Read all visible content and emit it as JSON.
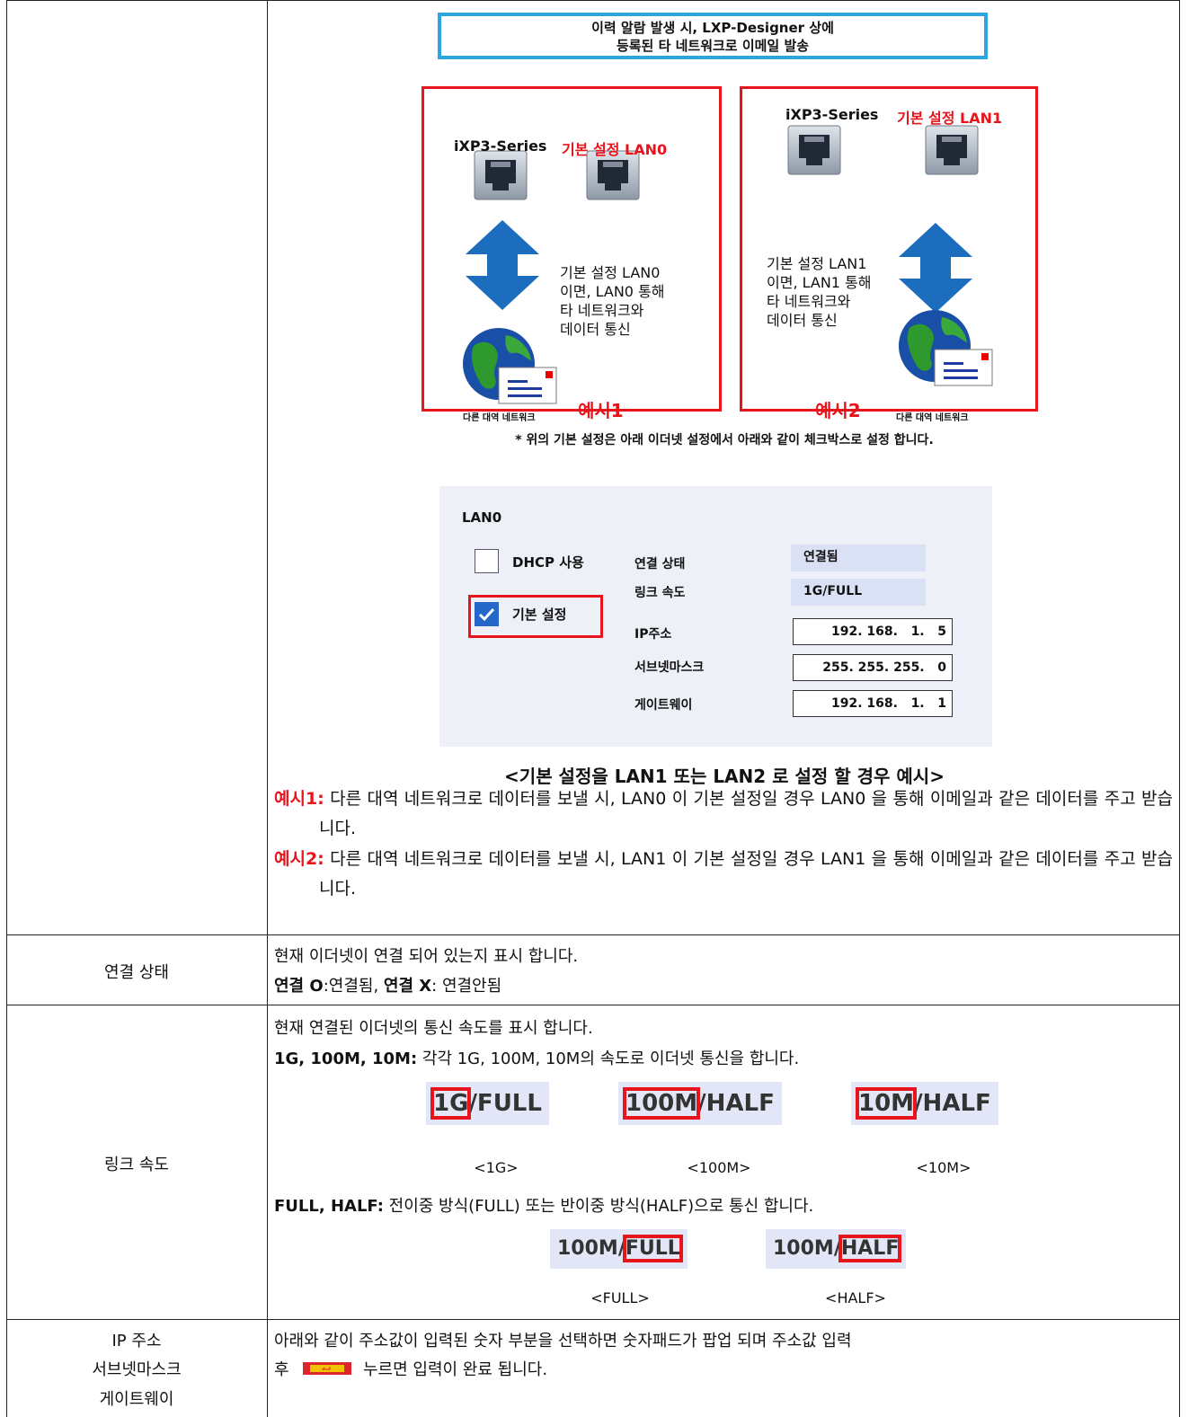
{
  "banner": {
    "lines": [
      "이력 알람 발생 시, LXP-Designer 상에",
      "등록된 타 네트워크로 이메일 발송"
    ]
  },
  "examples": [
    {
      "device": "iXP3-Series",
      "setting": "기본 설정 LAN0",
      "description": [
        "기본 설정 LAN0",
        "이면, LAN0 통해",
        "타 네트워크와",
        "데이터 통신"
      ],
      "network": "다른 대역 네트워크",
      "label": "예시1"
    },
    {
      "device": "iXP3-Series",
      "setting": "기본 설정 LAN1",
      "description": [
        "기본 설정 LAN1",
        "이면, LAN1 통해",
        "타 네트워크와",
        "데이터 통신"
      ],
      "network": "다른 대역 네트워크",
      "label": "예시2"
    }
  ],
  "note": "* 위의 기본 설정은 아래 이더넷 설정에서 아래와 같이 체크박스로 설정 합니다.",
  "lan_panel": {
    "title": "LAN0",
    "dhcp": "DHCP 사용",
    "default": "기본 설정",
    "fields": [
      {
        "label": "연결 상태",
        "value": "연결됨"
      },
      {
        "label": "링크 속도",
        "value": "1G/FULL"
      },
      {
        "label": "IP주소",
        "value": "192. 168.   1.   5"
      },
      {
        "label": "서브넷마스크",
        "value": "255. 255. 255.   0"
      },
      {
        "label": "게이트웨이",
        "value": "192. 168.   1.   1"
      }
    ]
  },
  "caption": "<기본 설정을 LAN1 또는 LAN2 로 설정 할 경우 예시>",
  "explanations": [
    {
      "label": "예시1:",
      "text": " 다른 대역 네트워크로 데이터를 보낼 시, LAN0 이 기본 설정일 경우 LAN0 을 통해 이메일과 같은 데이터를 주고 받습니다."
    },
    {
      "label": "예시2:",
      "text": " 다른 대역 네트워크로 데이터를 보낼 시, LAN1 이 기본 설정일 경우 LAN1 을 통해 이메일과 같은 데이터를 주고 받습니다."
    }
  ],
  "connection": {
    "header": "연결 상태",
    "description": "현재 이더넷이 연결 되어 있는지 표시 합니다.",
    "legend": [
      {
        "key": "연결 O",
        "text": ":연결됨, "
      },
      {
        "key": "연결 X",
        "text": ": 연결안됨"
      }
    ]
  },
  "link_speed": {
    "header": "링크 속도",
    "description": "현재 연결된 이더넷의 통신 속도를 표시 합니다.",
    "speeds": {
      "key": "1G, 100M, 10M:",
      "text": " 각각 1G, 100M, 10M의 속도로 이더넷 통신을 합니다."
    },
    "speed_samples": [
      {
        "highlight": "1G",
        "rest": "/FULL",
        "caption": "<1G>"
      },
      {
        "highlight": "100M",
        "rest": "/HALF",
        "caption": "<100M>"
      },
      {
        "highlight": "10M",
        "rest": "/HALF",
        "caption": "<10M>"
      }
    ],
    "duplex": {
      "key": "FULL, HALF:",
      "text": " 전이중 방식(FULL) 또는 반이중 방식(HALF)으로 통신 합니다."
    },
    "duplex_samples": [
      {
        "prefix": "100M/",
        "highlight": "FULL",
        "caption": "<FULL>"
      },
      {
        "prefix": "100M/",
        "highlight": "HALF",
        "caption": "<HALF>"
      }
    ]
  },
  "address": {
    "header": [
      "IP 주소",
      "서브넷마스크",
      "게이트웨이"
    ],
    "line": "아래와 같이 주소값이 입력된 숫자 부분을 선택하면 숫자패드가 팝업 되며 주소값 입력",
    "before_icon": "후",
    "after_icon": "누르면 입력이 완료 됩니다."
  }
}
